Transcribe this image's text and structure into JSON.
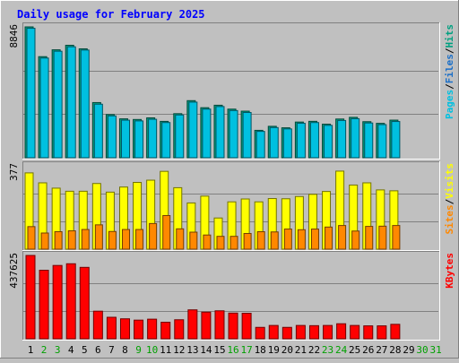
{
  "chart_data": {
    "type": "bar",
    "title": "Daily usage for February 2025",
    "days": [
      "1",
      "2",
      "3",
      "4",
      "5",
      "6",
      "7",
      "8",
      "9",
      "10",
      "11",
      "12",
      "13",
      "14",
      "15",
      "16",
      "17",
      "18",
      "19",
      "20",
      "21",
      "22",
      "23",
      "24",
      "25",
      "26",
      "27",
      "28",
      "29",
      "30",
      "31"
    ],
    "weekend_days": [
      1,
      2,
      8,
      9,
      15,
      16,
      22,
      23,
      29,
      30
    ],
    "colors": {
      "pages": "#00c0e0",
      "files": "#1a6fc8",
      "hits": "#00a080",
      "visits": "#ffff00",
      "sites": "#ff8800",
      "kbytes": "#ff0000",
      "title": "#0000ff",
      "weekday_label": "#000000",
      "weekend_label": "#00a000"
    },
    "panels": [
      {
        "name": "hits-files-pages",
        "ymax_label": "8846",
        "ymax": 8846,
        "legend": [
          {
            "key": "pages",
            "text": "Pages"
          },
          {
            "key": "sep",
            "text": "/"
          },
          {
            "key": "files",
            "text": "Files"
          },
          {
            "key": "sep",
            "text": "/"
          },
          {
            "key": "hits",
            "text": "Hits"
          }
        ],
        "series": [
          {
            "key": "hits",
            "values": [
              8846,
              6833,
              7297,
              7603,
              7363,
              3730,
              2920,
              2630,
              2586,
              2696,
              2459,
              2980,
              3860,
              3383,
              3550,
              3287,
              3150,
              1853,
              2125,
              2025,
              2413,
              2462,
              2269,
              2618,
              2731,
              2438,
              2325,
              2543,
              0,
              0,
              0
            ]
          },
          {
            "key": "pages",
            "values": [
              8750,
              6740,
              7200,
              7500,
              7280,
              3620,
              2830,
              2540,
              2490,
              2600,
              2380,
              2890,
              3760,
              3290,
              3460,
              3190,
              3060,
              1780,
              2040,
              1950,
              2330,
              2380,
              2190,
              2520,
              2640,
              2350,
              2240,
              2450,
              0,
              0,
              0
            ]
          }
        ]
      },
      {
        "name": "visits-sites",
        "ymax_label": "377",
        "ymax": 377,
        "legend": [
          {
            "key": "sites",
            "text": "Sites"
          },
          {
            "key": "sep",
            "text": "/"
          },
          {
            "key": "visits",
            "text": "Visits"
          }
        ],
        "series": [
          {
            "key": "visits",
            "values": [
              345,
              300,
              276,
              262,
              262,
              297,
              258,
              281,
              302,
              312,
              352,
              278,
              209,
              240,
              141,
              214,
              227,
              214,
              229,
              228,
              238,
              248,
              261,
              353,
              290,
              300,
              268,
              264,
              0,
              0,
              0
            ]
          },
          {
            "key": "sites",
            "values": [
              102,
              73,
              79,
              83,
              89,
              110,
              80,
              89,
              89,
              116,
              152,
              92,
              77,
              64,
              58,
              58,
              71,
              79,
              78,
              91,
              88,
              91,
              100,
              107,
              82,
              103,
              104,
              107,
              0,
              0,
              0
            ]
          }
        ]
      },
      {
        "name": "kbytes",
        "ymax_label": "437625",
        "ymax": 437625,
        "legend": [
          {
            "key": "kbytes",
            "text": "KBytes"
          }
        ],
        "series": [
          {
            "key": "kbytes",
            "values": [
              437625,
              360000,
              385000,
              394000,
              375000,
              145000,
              113000,
              105000,
              98000,
              103000,
              87000,
              100000,
              152000,
              140000,
              147000,
              135000,
              134000,
              60000,
              70000,
              60000,
              70000,
              69000,
              70000,
              79000,
              70000,
              68000,
              68000,
              76000,
              0,
              0,
              0
            ]
          }
        ]
      }
    ]
  }
}
